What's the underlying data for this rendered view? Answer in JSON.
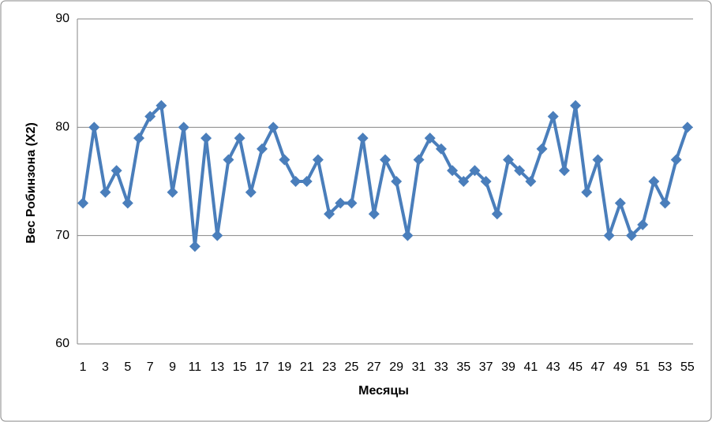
{
  "chart_data": {
    "type": "line",
    "x_label": "Месяцы",
    "y_label": "Вес Робинзона (Х2)",
    "categories": [
      1,
      null,
      3,
      null,
      5,
      null,
      7,
      null,
      9,
      null,
      11,
      null,
      13,
      null,
      15,
      null,
      17,
      null,
      19,
      null,
      21,
      null,
      23,
      null,
      25,
      null,
      27,
      null,
      29,
      null,
      31,
      null,
      33,
      null,
      35,
      null,
      37,
      null,
      39,
      null,
      41,
      null,
      43,
      null,
      45,
      null,
      47,
      null,
      49,
      null,
      51,
      null,
      53,
      null,
      55
    ],
    "values": [
      73,
      80,
      74,
      76,
      73,
      79,
      81,
      82,
      74,
      80,
      69,
      79,
      70,
      77,
      79,
      74,
      78,
      80,
      77,
      75,
      75,
      77,
      72,
      73,
      73,
      79,
      72,
      77,
      75,
      70,
      77,
      79,
      78,
      76,
      75,
      76,
      75,
      72,
      77,
      76,
      75,
      78,
      81,
      76,
      82,
      74,
      77,
      70,
      73,
      70,
      71,
      75,
      73,
      77,
      80
    ],
    "color": "#4a7ebb",
    "ylim": [
      60,
      90
    ],
    "yticks": [
      60,
      70,
      80,
      90
    ],
    "grid": true
  }
}
